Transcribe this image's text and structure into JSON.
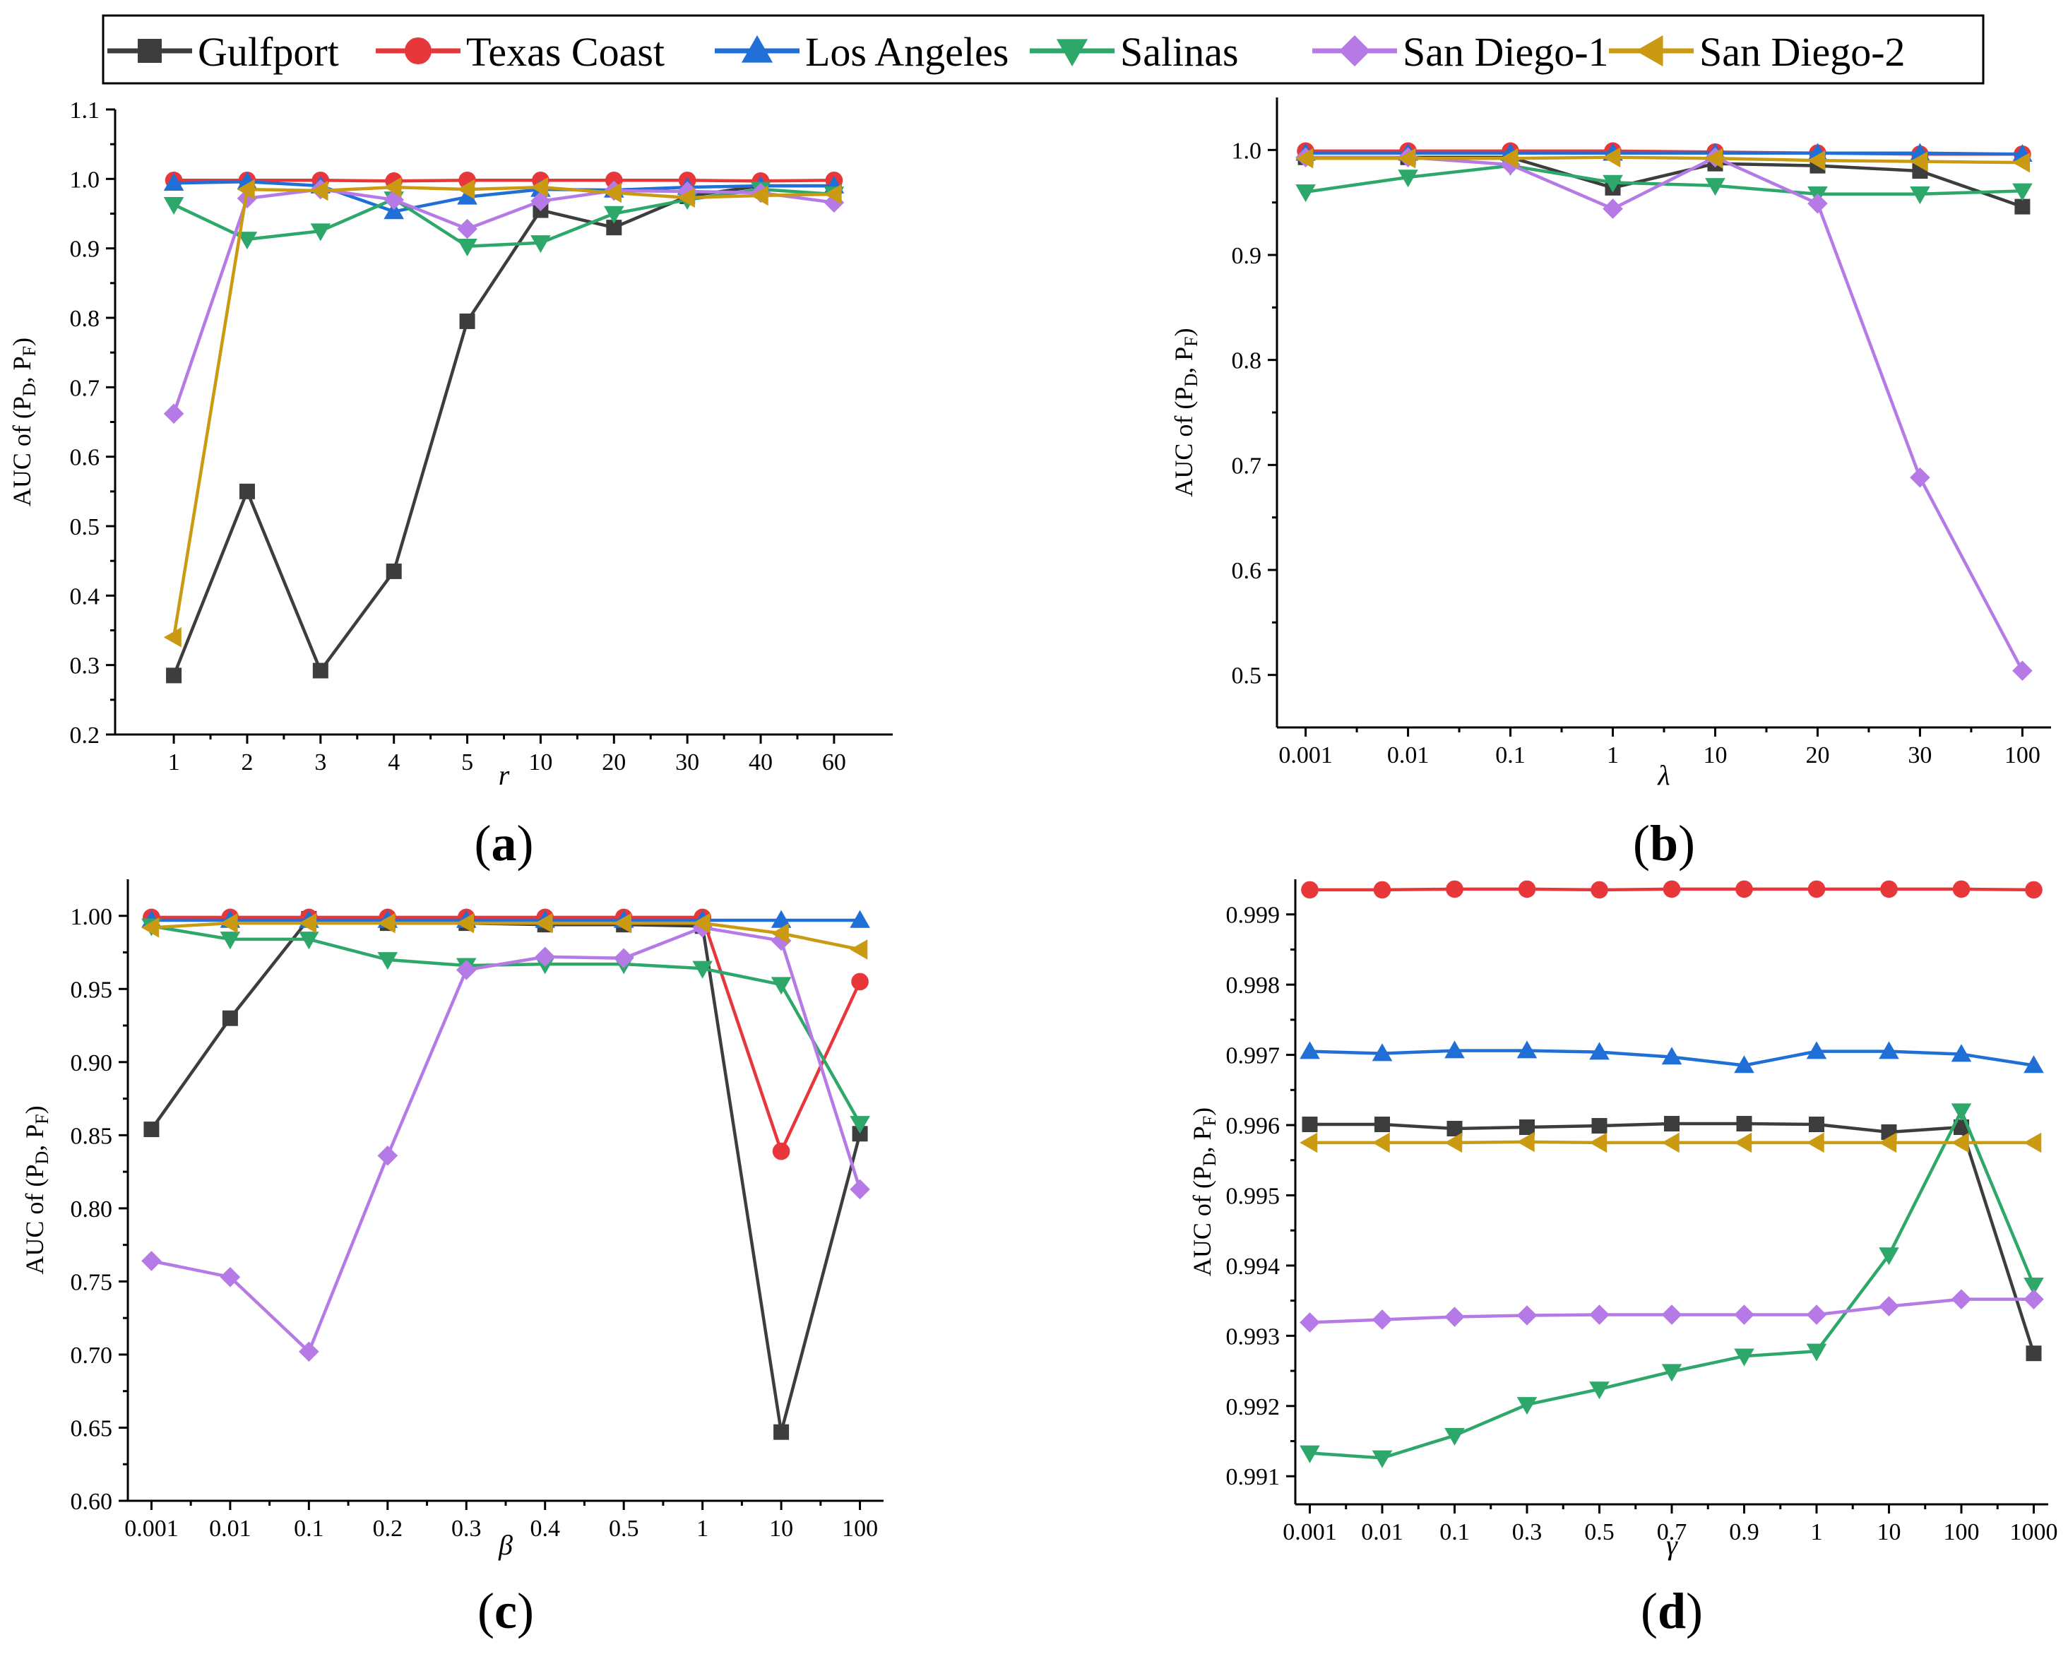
{
  "legend_series": [
    {
      "name": "Gulfport",
      "color": "#3d3d3d",
      "marker": "square"
    },
    {
      "name": "Texas Coast",
      "color": "#e8373b",
      "marker": "circle"
    },
    {
      "name": "Los Angeles",
      "color": "#1f6fd6",
      "marker": "triangle-up"
    },
    {
      "name": "Salinas",
      "color": "#2ea86a",
      "marker": "triangle-down"
    },
    {
      "name": "San Diego-1",
      "color": "#b57ae6",
      "marker": "diamond"
    },
    {
      "name": "San Diego-2",
      "color": "#c99a12",
      "marker": "triangle-left"
    }
  ],
  "chart_data": [
    {
      "type": "line",
      "panel": "(a)",
      "xlabel": "r",
      "ylabel": "AUC of (P_D, P_F)",
      "categories": [
        "1",
        "2",
        "3",
        "4",
        "5",
        "10",
        "20",
        "30",
        "40",
        "60"
      ],
      "ylim": [
        0.2,
        1.1
      ],
      "yticks": [
        0.2,
        0.3,
        0.4,
        0.5,
        0.6,
        0.7,
        0.8,
        0.9,
        1.0,
        1.1
      ],
      "ytick_labels": [
        "0.2",
        "0.3",
        "0.4",
        "0.5",
        "0.6",
        "0.7",
        "0.8",
        "0.9",
        "1.0",
        "1.1"
      ],
      "series": [
        {
          "name": "Gulfport",
          "values": [
            0.285,
            0.55,
            0.292,
            0.435,
            0.795,
            0.955,
            0.93,
            0.975,
            0.99,
            0.99
          ]
        },
        {
          "name": "Texas Coast",
          "values": [
            0.998,
            0.998,
            0.998,
            0.997,
            0.998,
            0.998,
            0.998,
            0.998,
            0.997,
            0.998
          ]
        },
        {
          "name": "Los Angeles",
          "values": [
            0.994,
            0.996,
            0.99,
            0.953,
            0.974,
            0.985,
            0.984,
            0.988,
            0.99,
            0.99
          ]
        },
        {
          "name": "Salinas",
          "values": [
            0.963,
            0.913,
            0.925,
            0.971,
            0.903,
            0.908,
            0.95,
            0.97,
            0.985,
            0.978
          ]
        },
        {
          "name": "San Diego-1",
          "values": [
            0.662,
            0.972,
            0.985,
            0.97,
            0.928,
            0.968,
            0.983,
            0.982,
            0.98,
            0.966
          ]
        },
        {
          "name": "San Diego-2",
          "values": [
            0.34,
            0.985,
            0.983,
            0.988,
            0.985,
            0.988,
            0.98,
            0.973,
            0.976,
            0.978
          ]
        }
      ]
    },
    {
      "type": "line",
      "panel": "(b)",
      "xlabel": "λ",
      "ylabel": "AUC of (P_D, P_F)",
      "categories": [
        "0.001",
        "0.01",
        "0.1",
        "1",
        "10",
        "20",
        "30",
        "100"
      ],
      "ylim": [
        0.45,
        1.05
      ],
      "yticks": [
        0.5,
        0.6,
        0.7,
        0.8,
        0.9,
        1.0
      ],
      "ytick_labels": [
        "0.5",
        "0.6",
        "0.7",
        "0.8",
        "0.9",
        "1.0"
      ],
      "series": [
        {
          "name": "Gulfport",
          "values": [
            0.993,
            0.993,
            0.993,
            0.964,
            0.987,
            0.985,
            0.98,
            0.946
          ]
        },
        {
          "name": "Texas Coast",
          "values": [
            0.999,
            0.999,
            0.999,
            0.999,
            0.998,
            0.997,
            0.996,
            0.996
          ]
        },
        {
          "name": "Los Angeles",
          "values": [
            0.997,
            0.997,
            0.997,
            0.997,
            0.997,
            0.997,
            0.997,
            0.996
          ]
        },
        {
          "name": "Salinas",
          "values": [
            0.96,
            0.974,
            0.985,
            0.969,
            0.966,
            0.958,
            0.958,
            0.961
          ]
        },
        {
          "name": "San Diego-1",
          "values": [
            0.993,
            0.993,
            0.986,
            0.944,
            0.993,
            0.949,
            0.688,
            0.504
          ]
        },
        {
          "name": "San Diego-2",
          "values": [
            0.992,
            0.992,
            0.992,
            0.993,
            0.992,
            0.99,
            0.989,
            0.988
          ]
        }
      ]
    },
    {
      "type": "line",
      "panel": "(c)",
      "xlabel": "β",
      "ylabel": "AUC of (P_D, P_F)",
      "categories": [
        "0.001",
        "0.01",
        "0.1",
        "0.2",
        "0.3",
        "0.4",
        "0.5",
        "1",
        "10",
        "100"
      ],
      "ylim": [
        0.6,
        1.025
      ],
      "yticks": [
        0.6,
        0.65,
        0.7,
        0.75,
        0.8,
        0.85,
        0.9,
        0.95,
        1.0
      ],
      "ytick_labels": [
        "0.60",
        "0.65",
        "0.70",
        "0.75",
        "0.80",
        "0.85",
        "0.90",
        "0.95",
        "1.00"
      ],
      "series": [
        {
          "name": "Gulfport",
          "values": [
            0.854,
            0.93,
            0.998,
            0.995,
            0.995,
            0.994,
            0.994,
            0.993,
            0.647,
            0.851
          ]
        },
        {
          "name": "Texas Coast",
          "values": [
            0.999,
            0.999,
            0.999,
            0.999,
            0.999,
            0.999,
            0.999,
            0.999,
            0.839,
            0.955
          ]
        },
        {
          "name": "Los Angeles",
          "values": [
            0.997,
            0.997,
            0.997,
            0.997,
            0.997,
            0.997,
            0.997,
            0.997,
            0.997,
            0.997
          ]
        },
        {
          "name": "Salinas",
          "values": [
            0.993,
            0.984,
            0.984,
            0.97,
            0.966,
            0.967,
            0.967,
            0.964,
            0.953,
            0.858
          ]
        },
        {
          "name": "San Diego-1",
          "values": [
            0.764,
            0.753,
            0.702,
            0.836,
            0.963,
            0.972,
            0.971,
            0.992,
            0.983,
            0.813
          ]
        },
        {
          "name": "San Diego-2",
          "values": [
            0.992,
            0.995,
            0.995,
            0.995,
            0.995,
            0.995,
            0.995,
            0.995,
            0.988,
            0.977
          ]
        }
      ]
    },
    {
      "type": "line",
      "panel": "(d)",
      "xlabel": "γ",
      "ylabel": "AUC of (P_D, P_F)",
      "categories": [
        "0.001",
        "0.01",
        "0.1",
        "0.3",
        "0.5",
        "0.7",
        "0.9",
        "1",
        "10",
        "100",
        "1000"
      ],
      "ylim": [
        0.9906,
        0.9995
      ],
      "yticks": [
        0.991,
        0.992,
        0.993,
        0.994,
        0.995,
        0.996,
        0.997,
        0.998,
        0.999
      ],
      "ytick_labels": [
        "0.991",
        "0.992",
        "0.993",
        "0.994",
        "0.995",
        "0.996",
        "0.997",
        "0.998",
        "0.999"
      ],
      "series": [
        {
          "name": "Gulfport",
          "values": [
            0.99601,
            0.99601,
            0.99595,
            0.99597,
            0.99599,
            0.99602,
            0.99602,
            0.99601,
            0.9959,
            0.99597,
            0.99275
          ]
        },
        {
          "name": "Texas Coast",
          "values": [
            0.99935,
            0.99935,
            0.99936,
            0.99936,
            0.99935,
            0.99936,
            0.99936,
            0.99936,
            0.99936,
            0.99936,
            0.99935
          ]
        },
        {
          "name": "Los Angeles",
          "values": [
            0.99705,
            0.99702,
            0.99706,
            0.99706,
            0.99704,
            0.99697,
            0.99685,
            0.99705,
            0.99705,
            0.99701,
            0.99685
          ]
        },
        {
          "name": "Salinas",
          "values": [
            0.99133,
            0.99126,
            0.99158,
            0.99202,
            0.99224,
            0.99249,
            0.99271,
            0.99278,
            0.99415,
            0.9962,
            0.99372
          ]
        },
        {
          "name": "San Diego-1",
          "values": [
            0.99319,
            0.99323,
            0.99327,
            0.99329,
            0.9933,
            0.9933,
            0.9933,
            0.9933,
            0.99342,
            0.99352,
            0.99352
          ]
        },
        {
          "name": "San Diego-2",
          "values": [
            0.99575,
            0.99575,
            0.99575,
            0.99576,
            0.99575,
            0.99575,
            0.99575,
            0.99575,
            0.99575,
            0.99575,
            0.99575
          ]
        }
      ]
    }
  ]
}
